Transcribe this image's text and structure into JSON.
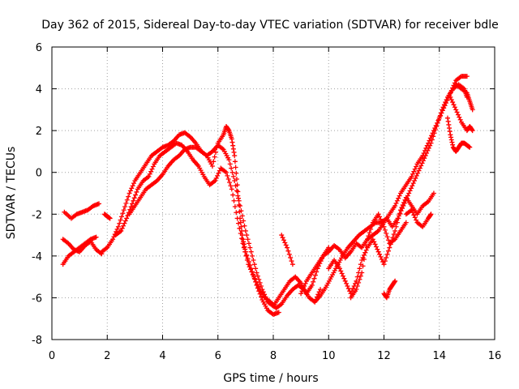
{
  "chart_data": {
    "type": "scatter",
    "title": "Day 362 of 2015, Sidereal Day-to-day VTEC variation (SDTVAR) for receiver bdle",
    "xlabel": "GPS time / hours",
    "ylabel": "SDTVAR / TECUs",
    "xlim": [
      0,
      16
    ],
    "ylim": [
      -8,
      6
    ],
    "xticks": [
      "0",
      "2",
      "4",
      "6",
      "8",
      "10",
      "12",
      "14",
      "16"
    ],
    "yticks": [
      "-8",
      "-6",
      "-4",
      "-2",
      "0",
      "2",
      "4",
      "6"
    ],
    "grid": true,
    "marker": "plus",
    "color": "#ff0000",
    "series": [
      {
        "x": [
          0.45,
          0.7,
          0.9,
          1.1,
          1.3,
          1.5,
          1.7
        ],
        "y": [
          -1.9,
          -2.2,
          -2.0,
          -1.9,
          -1.8,
          -1.6,
          -1.5
        ]
      },
      {
        "x": [
          0.4,
          0.6,
          0.8,
          1.0,
          1.2,
          1.4,
          1.6,
          1.8
        ],
        "y": [
          -3.2,
          -3.4,
          -3.7,
          -3.8,
          -3.5,
          -3.3,
          -3.7,
          -3.9
        ]
      },
      {
        "x": [
          0.4,
          0.6,
          0.8,
          1.0,
          1.2,
          1.4,
          1.6
        ],
        "y": [
          -4.4,
          -4.0,
          -3.8,
          -3.6,
          -3.4,
          -3.2,
          -3.1
        ]
      },
      {
        "x": [
          1.9,
          2.0,
          2.1
        ],
        "y": [
          -2.0,
          -2.1,
          -2.2
        ]
      },
      {
        "x": [
          1.8,
          2.0,
          2.2,
          2.4,
          2.6,
          2.8,
          3.0,
          3.2,
          3.4,
          3.6,
          3.8,
          4.0,
          4.2,
          4.4,
          4.6,
          4.8,
          5.0,
          5.2,
          5.4,
          5.6,
          5.8,
          6.0,
          6.2,
          6.4,
          6.6,
          6.8,
          7.0,
          7.2,
          7.4,
          7.6,
          7.8,
          8.0,
          8.2,
          8.4,
          8.6,
          8.8,
          9.0,
          9.2,
          9.4,
          9.6,
          9.8,
          10.0
        ],
        "y": [
          -3.8,
          -3.6,
          -3.2,
          -2.6,
          -1.8,
          -1.0,
          -0.4,
          0.0,
          0.4,
          0.8,
          1.0,
          1.2,
          1.3,
          1.5,
          1.8,
          1.9,
          1.7,
          1.4,
          1.0,
          0.8,
          1.0,
          1.3,
          1.1,
          0.6,
          -0.4,
          -1.6,
          -2.8,
          -3.8,
          -4.8,
          -5.6,
          -6.2,
          -6.4,
          -6.0,
          -5.6,
          -5.2,
          -5.0,
          -5.3,
          -5.8,
          -5.4,
          -4.6,
          -4.0,
          -3.6
        ]
      },
      {
        "x": [
          2.3,
          2.5,
          2.7,
          2.9,
          3.1,
          3.3,
          3.5,
          3.7,
          3.9,
          4.1,
          4.3,
          4.5,
          4.7,
          4.9,
          5.1,
          5.3,
          5.5,
          5.7,
          5.9,
          6.1,
          6.3,
          6.5,
          6.7,
          6.9,
          7.1,
          7.3,
          7.5,
          7.7,
          7.9,
          8.1,
          8.3,
          8.5,
          8.7,
          8.9,
          9.1,
          9.3,
          9.5,
          9.7
        ],
        "y": [
          -3.0,
          -2.8,
          -2.2,
          -1.5,
          -0.8,
          -0.4,
          -0.2,
          0.4,
          0.8,
          1.0,
          1.2,
          1.4,
          1.3,
          1.0,
          0.6,
          0.3,
          -0.2,
          -0.6,
          -0.4,
          0.2,
          0.0,
          -0.8,
          -2.2,
          -3.4,
          -4.4,
          -5.0,
          -5.6,
          -6.0,
          -6.2,
          -6.5,
          -6.3,
          -5.9,
          -5.6,
          -5.4,
          -5.6,
          -6.0,
          -6.2,
          -5.6
        ]
      },
      {
        "x": [
          2.8,
          3.0,
          3.2,
          3.4,
          3.6,
          3.8,
          4.0,
          4.2,
          4.4,
          4.6,
          4.8,
          5.0,
          5.2,
          5.4,
          5.6,
          5.8,
          6.0,
          6.2,
          6.3,
          6.4,
          6.5,
          6.6,
          6.7,
          6.8,
          6.9,
          7.0,
          7.2,
          7.4,
          7.6,
          7.8,
          8.0,
          8.2
        ],
        "y": [
          -2.0,
          -1.6,
          -1.2,
          -0.8,
          -0.6,
          -0.4,
          -0.1,
          0.3,
          0.6,
          0.8,
          1.1,
          1.2,
          1.2,
          1.0,
          0.8,
          0.3,
          1.4,
          1.8,
          2.2,
          2.0,
          1.6,
          0.8,
          -0.6,
          -2.2,
          -3.2,
          -3.8,
          -4.6,
          -5.4,
          -6.1,
          -6.6,
          -6.8,
          -6.7
        ]
      },
      {
        "x": [
          8.3,
          8.5,
          8.7
        ],
        "y": [
          -3.0,
          -3.6,
          -4.4
        ]
      },
      {
        "x": [
          9.0,
          9.2,
          9.4,
          9.6,
          9.8,
          10.0,
          10.2,
          10.4,
          10.6,
          10.8,
          11.0,
          11.2,
          11.4,
          11.6,
          11.8,
          12.0,
          12.2,
          12.4,
          12.6,
          12.8,
          13.0,
          13.2,
          13.4,
          13.6,
          13.8,
          14.0,
          14.2,
          14.4,
          14.6,
          14.8,
          15.0
        ],
        "y": [
          -5.8,
          -5.2,
          -4.8,
          -4.4,
          -4.0,
          -3.8,
          -3.5,
          -3.7,
          -4.1,
          -3.8,
          -3.4,
          -3.6,
          -3.2,
          -3.0,
          -2.8,
          -2.4,
          -2.0,
          -1.6,
          -1.0,
          -0.6,
          -0.2,
          0.4,
          0.8,
          1.4,
          2.0,
          2.6,
          3.2,
          3.8,
          4.4,
          4.6,
          4.6
        ]
      },
      {
        "x": [
          9.5,
          9.7,
          9.9,
          10.1,
          10.3,
          10.5,
          10.7,
          10.9,
          11.1,
          11.3,
          11.5,
          11.7,
          11.9,
          12.1,
          12.3,
          12.5,
          12.7,
          12.9,
          13.1,
          13.3,
          13.5,
          13.7,
          13.9,
          14.1,
          14.3,
          14.5,
          14.7,
          14.9,
          15.0
        ],
        "y": [
          -6.2,
          -5.9,
          -5.5,
          -5.0,
          -4.5,
          -4.0,
          -3.6,
          -3.3,
          -3.0,
          -2.8,
          -2.6,
          -2.4,
          -2.4,
          -2.2,
          -2.6,
          -2.2,
          -1.6,
          -1.0,
          -0.4,
          0.2,
          0.8,
          1.4,
          2.2,
          3.0,
          3.6,
          4.0,
          4.2,
          4.0,
          3.6
        ]
      },
      {
        "x": [
          10.0,
          10.2,
          10.4,
          10.6,
          10.8,
          11.0,
          11.2,
          11.4,
          11.6,
          11.8,
          12.0,
          12.2,
          12.4,
          12.6,
          12.8,
          13.0,
          13.2,
          13.4,
          13.6,
          13.8
        ],
        "y": [
          -4.6,
          -4.2,
          -4.6,
          -5.2,
          -5.8,
          -5.2,
          -4.2,
          -3.6,
          -3.2,
          -3.8,
          -4.4,
          -3.6,
          -2.8,
          -1.8,
          -1.2,
          -1.6,
          -2.0,
          -1.6,
          -1.4,
          -1.0
        ]
      },
      {
        "x": [
          10.8,
          11.0,
          11.2,
          11.4,
          11.6,
          11.8,
          12.0,
          12.2,
          12.4,
          12.6,
          12.8
        ],
        "y": [
          -6.0,
          -5.6,
          -4.8,
          -3.2,
          -2.4,
          -2.0,
          -2.6,
          -3.4,
          -3.2,
          -2.8,
          -2.4
        ]
      },
      {
        "x": [
          12.0,
          12.1,
          12.2,
          12.3,
          12.4
        ],
        "y": [
          -5.8,
          -6.0,
          -5.6,
          -5.4,
          -5.2
        ]
      },
      {
        "x": [
          12.8,
          13.0,
          13.2,
          13.4,
          13.6,
          13.7
        ],
        "y": [
          -2.0,
          -1.8,
          -2.4,
          -2.6,
          -2.2,
          -2.0
        ]
      },
      {
        "x": [
          14.3,
          14.4,
          14.5,
          14.6,
          14.7,
          14.8,
          14.9,
          15.0,
          15.1
        ],
        "y": [
          2.6,
          1.8,
          1.2,
          1.0,
          1.2,
          1.4,
          1.4,
          1.3,
          1.2
        ]
      },
      {
        "x": [
          14.4,
          14.6,
          14.8,
          15.0,
          15.1,
          15.2
        ],
        "y": [
          3.6,
          3.0,
          2.4,
          2.0,
          2.2,
          2.0
        ]
      },
      {
        "x": [
          14.6,
          14.8,
          15.0,
          15.1,
          15.2
        ],
        "y": [
          4.2,
          4.0,
          3.8,
          3.4,
          3.0
        ]
      }
    ]
  }
}
